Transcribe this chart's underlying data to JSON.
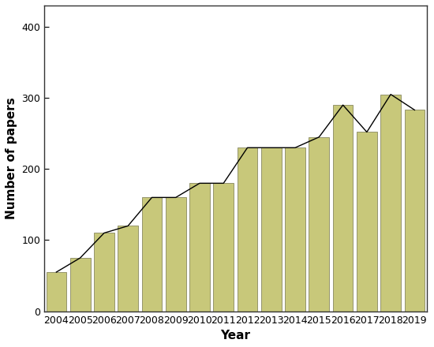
{
  "years": [
    2004,
    2005,
    2006,
    2007,
    2008,
    2009,
    2010,
    2011,
    2012,
    2013,
    2014,
    2015,
    2016,
    2017,
    2018,
    2019
  ],
  "values": [
    55,
    75,
    110,
    120,
    160,
    160,
    180,
    180,
    230,
    230,
    230,
    245,
    290,
    252,
    305,
    283
  ],
  "bar_color": "#C8C87A",
  "bar_edgecolor": "#888860",
  "line_color": "#000000",
  "background_color": "#ffffff",
  "xlabel": "Year",
  "ylabel": "Number of papers",
  "xlim_left": 2003.5,
  "xlim_right": 2019.5,
  "ylim": [
    0,
    430
  ],
  "yticks": [
    0,
    100,
    200,
    300,
    400
  ],
  "xlabel_fontsize": 11,
  "ylabel_fontsize": 11,
  "tick_fontsize": 9,
  "bar_width": 0.85,
  "line_width": 1.0,
  "figure_width": 5.5,
  "figure_height": 4.4,
  "dpi": 100
}
